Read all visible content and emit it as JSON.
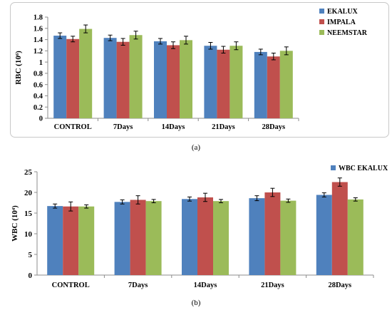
{
  "chart_data": [
    {
      "type": "bar",
      "caption": "(a)",
      "ylabel": "RBC (10⁶)",
      "ylim": [
        0,
        1.8
      ],
      "yticks": [
        0,
        0.2,
        0.4,
        0.6,
        0.8,
        1,
        1.2,
        1.4,
        1.6,
        1.8
      ],
      "categories": [
        "CONTROL",
        "7Days",
        "14Days",
        "21Days",
        "28Days"
      ],
      "series": [
        {
          "name": "EKALUX",
          "color": "#4f81bd",
          "values": [
            1.47,
            1.43,
            1.37,
            1.29,
            1.18
          ],
          "errors": [
            0.05,
            0.05,
            0.05,
            0.06,
            0.05
          ]
        },
        {
          "name": "IMPALA",
          "color": "#c0504d",
          "values": [
            1.41,
            1.36,
            1.3,
            1.22,
            1.1
          ],
          "errors": [
            0.05,
            0.06,
            0.06,
            0.06,
            0.06
          ]
        },
        {
          "name": "NEEMSTAR",
          "color": "#9bbb59",
          "values": [
            1.59,
            1.48,
            1.39,
            1.29,
            1.2
          ],
          "errors": [
            0.07,
            0.07,
            0.07,
            0.07,
            0.07
          ]
        }
      ],
      "grid": false,
      "legend": "top-right"
    },
    {
      "type": "bar",
      "caption": "(b)",
      "ylabel": "WBC (10⁴)",
      "ylim": [
        0,
        25
      ],
      "yticks": [
        0,
        5,
        10,
        15,
        20,
        25
      ],
      "categories": [
        "CONTROL",
        "7Days",
        "14Days",
        "21Days",
        "28Days"
      ],
      "series": [
        {
          "name": "WBC EKALUX",
          "color": "#4f81bd",
          "values": [
            16.7,
            17.7,
            18.4,
            18.6,
            19.4
          ],
          "errors": [
            0.5,
            0.5,
            0.5,
            0.6,
            0.5
          ]
        },
        {
          "name": "",
          "color": "#c0504d",
          "values": [
            16.6,
            18.2,
            18.8,
            20.0,
            22.5
          ],
          "errors": [
            1.1,
            1.0,
            1.0,
            1.0,
            1.0
          ]
        },
        {
          "name": "",
          "color": "#9bbb59",
          "values": [
            16.6,
            17.9,
            17.9,
            18.0,
            18.3
          ],
          "errors": [
            0.4,
            0.4,
            0.4,
            0.4,
            0.4
          ]
        }
      ],
      "grid": false,
      "legend": "top-right"
    }
  ]
}
